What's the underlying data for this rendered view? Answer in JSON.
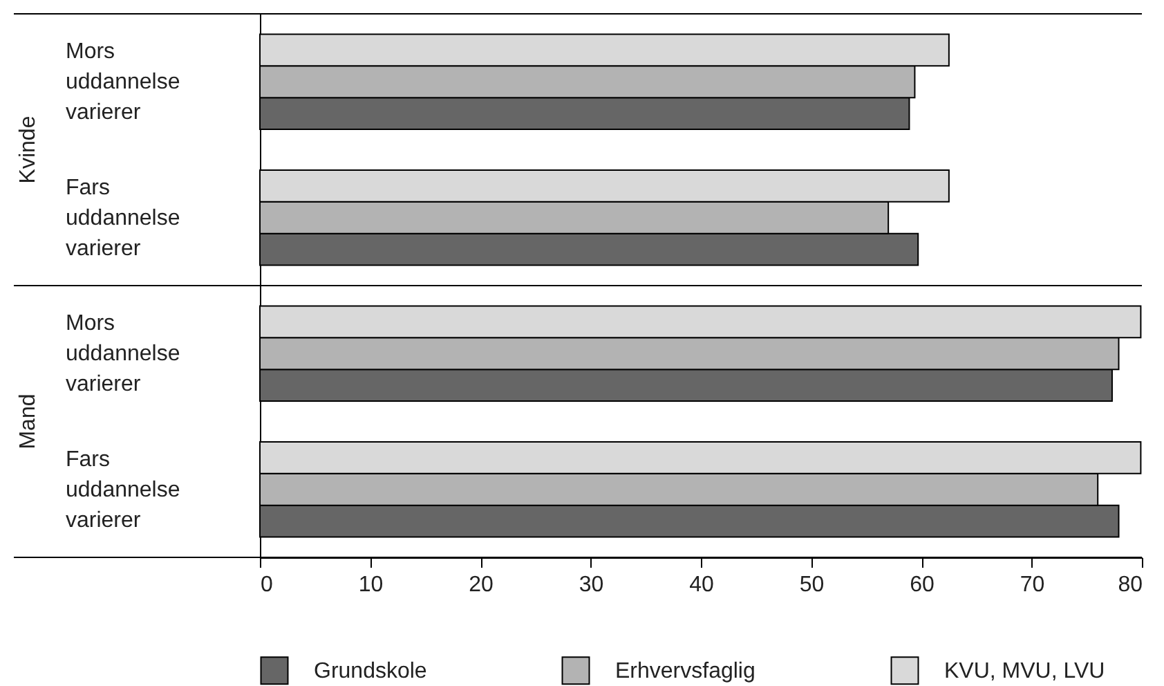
{
  "chart_data": {
    "type": "bar",
    "orientation": "horizontal",
    "categories": [
      "Mors uddannelse varierer",
      "Fars uddannelse varierer",
      "Mors uddannelse varierer",
      "Fars uddannelse varierer"
    ],
    "series": [
      {
        "name": "Grundskole",
        "color": "#666666",
        "values": [
          58.9,
          59.7,
          77.3,
          77.9
        ]
      },
      {
        "name": "Erhvervsfaglig",
        "color": "#b3b3b3",
        "values": [
          59.4,
          57.0,
          77.9,
          76.0
        ]
      },
      {
        "name": "KVU, MVU, LVU",
        "color": "#d9d9d9",
        "values": [
          62.5,
          62.5,
          79.9,
          79.9
        ]
      }
    ],
    "xlim": [
      0,
      80
    ],
    "xticks": [
      0,
      10,
      20,
      30,
      40,
      50,
      60,
      70,
      80
    ],
    "annotations": [
      "Kvinde",
      "Mand"
    ],
    "grid": false,
    "legend": "bottom"
  }
}
